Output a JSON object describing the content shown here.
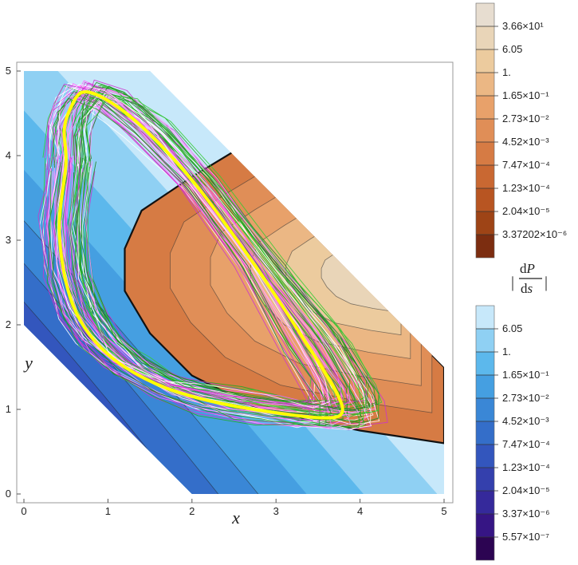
{
  "chart_data": {
    "type": "contour",
    "x_axis": {
      "label": "x",
      "ticks": [
        "0",
        "1",
        "2",
        "3",
        "4",
        "5"
      ],
      "range": [
        0,
        5
      ]
    },
    "y_axis": {
      "label": "y",
      "ticks": [
        "0",
        "1",
        "2",
        "3",
        "4",
        "5"
      ],
      "range": [
        0,
        5
      ]
    },
    "domain_boundary": [
      [
        0,
        2
      ],
      [
        2,
        0
      ],
      [
        5,
        0
      ],
      [
        5,
        1.5
      ],
      [
        1.5,
        5
      ],
      [
        0,
        5
      ]
    ],
    "positive_region_boundary": [
      [
        1.2,
        2.9
      ],
      [
        1.4,
        3.35
      ],
      [
        2.0,
        3.75
      ],
      [
        2.5,
        4.05
      ],
      [
        3.05,
        3.45
      ],
      [
        5,
        1.5
      ],
      [
        5,
        0.6
      ],
      [
        4.0,
        0.75
      ],
      [
        2.8,
        1.0
      ],
      [
        2.0,
        1.4
      ],
      [
        1.5,
        1.9
      ],
      [
        1.2,
        2.4
      ]
    ],
    "limit_cycle": [
      [
        0.5,
        3.9
      ],
      [
        0.42,
        3.2
      ],
      [
        0.48,
        2.6
      ],
      [
        0.62,
        2.15
      ],
      [
        0.85,
        1.8
      ],
      [
        1.2,
        1.5
      ],
      [
        1.7,
        1.25
      ],
      [
        2.3,
        1.08
      ],
      [
        3.0,
        0.96
      ],
      [
        3.55,
        0.9
      ],
      [
        3.78,
        0.95
      ],
      [
        3.72,
        1.2
      ],
      [
        3.35,
        1.8
      ],
      [
        2.75,
        2.7
      ],
      [
        2.05,
        3.65
      ],
      [
        1.45,
        4.3
      ],
      [
        1.0,
        4.65
      ],
      [
        0.7,
        4.75
      ],
      [
        0.55,
        4.55
      ],
      [
        0.48,
        4.3
      ]
    ],
    "legend_title": "|dP/ds|",
    "legend_positive": {
      "labels": [
        "3.66×10¹",
        "6.05",
        "1.",
        "1.65×10⁻¹",
        "2.73×10⁻²",
        "4.52×10⁻³",
        "7.47×10⁻⁴",
        "1.23×10⁻⁴",
        "2.04×10⁻⁵",
        "3.37202×10⁻⁶"
      ],
      "colors": [
        "#e7ddd0",
        "#e9d5b8",
        "#eccb9e",
        "#ebb784",
        "#e8a16a",
        "#e08e57",
        "#d67b44",
        "#c96832",
        "#b85522",
        "#9e4416",
        "#7c2d10"
      ]
    },
    "legend_negative": {
      "labels": [
        "6.05",
        "1.",
        "1.65×10⁻¹",
        "2.73×10⁻²",
        "4.52×10⁻³",
        "7.47×10⁻⁴",
        "1.23×10⁻⁴",
        "2.04×10⁻⁵",
        "3.37×10⁻⁶",
        "5.57×10⁻⁷"
      ],
      "colors": [
        "#c7e8fa",
        "#8fd0f3",
        "#5cb8ec",
        "#459fe1",
        "#3a87d6",
        "#346ec9",
        "#3356bd",
        "#3440ad",
        "#35299b",
        "#361584",
        "#2c0452"
      ]
    },
    "trajectory_colors": [
      "#33cc33",
      "#ff66ff",
      "#cc33cc",
      "#ffffff",
      "#22aa22",
      "#ff99ff",
      "#228822"
    ],
    "highlight_color": "#ffff00"
  }
}
